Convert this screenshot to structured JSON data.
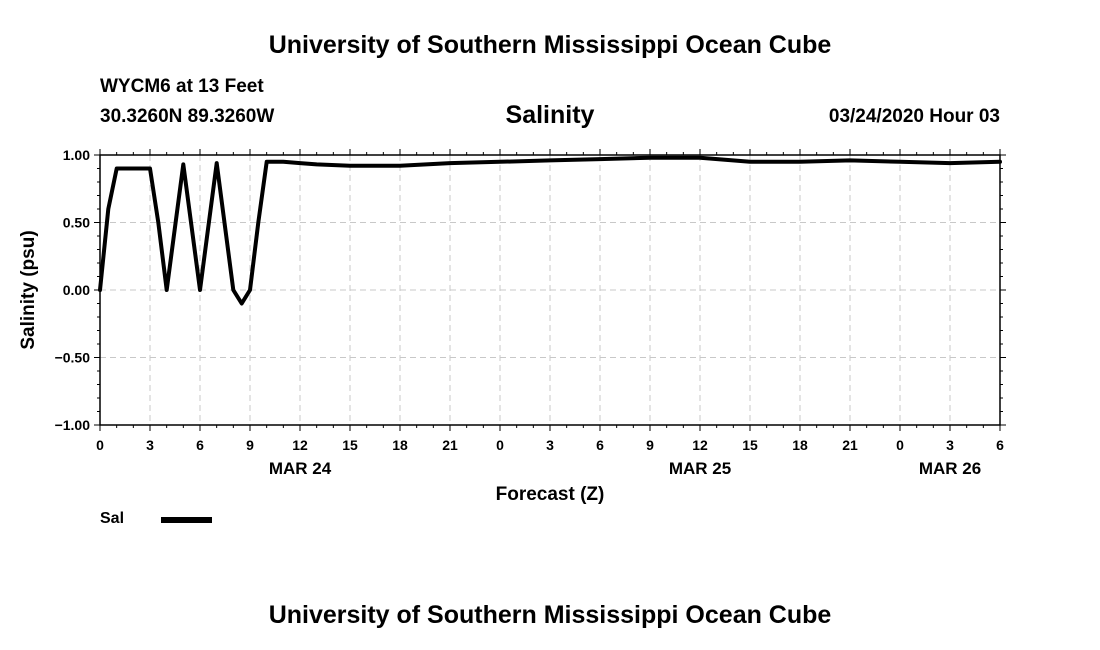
{
  "header": {
    "title": "University of Southern Mississippi Ocean Cube",
    "station": "WYCM6 at 13 Feet",
    "location": "30.3260N 89.3260W",
    "timestamp": "03/24/2020 Hour 03"
  },
  "footer": {
    "title": "University of Southern Mississippi Ocean Cube"
  },
  "chart_data": {
    "type": "line",
    "title": "Salinity",
    "xlabel": "Forecast (Z)",
    "ylabel": "Salinity (psu)",
    "ylim": [
      -1.0,
      1.0
    ],
    "y_ticks": [
      "1.00",
      "0.50",
      "0.00",
      "−0.50",
      "−1.00"
    ],
    "y_tick_values": [
      1.0,
      0.5,
      0.0,
      -0.5,
      -1.0
    ],
    "x_range_hours": [
      0,
      54
    ],
    "x_ticks": [
      "0",
      "3",
      "6",
      "9",
      "12",
      "15",
      "18",
      "21",
      "0",
      "3",
      "6",
      "9",
      "12",
      "15",
      "18",
      "21",
      "0",
      "3",
      "6"
    ],
    "date_labels": [
      {
        "label": "MAR 24",
        "hour": 12
      },
      {
        "label": "MAR 25",
        "hour": 36
      },
      {
        "label": "MAR 26",
        "hour": 51
      }
    ],
    "grid": true,
    "legend_position": "bottom-left",
    "series": [
      {
        "name": "Sal",
        "color": "#000000",
        "x": [
          0,
          0.5,
          1,
          2,
          3,
          3.5,
          4,
          5,
          6,
          7,
          8,
          8.5,
          9,
          9.5,
          10,
          11,
          12,
          13,
          15,
          18,
          21,
          24,
          27,
          30,
          33,
          36,
          39,
          42,
          45,
          48,
          51,
          54
        ],
        "y": [
          0.0,
          0.6,
          0.9,
          0.9,
          0.9,
          0.5,
          0.0,
          0.93,
          0.0,
          0.94,
          0.0,
          -0.1,
          0.0,
          0.5,
          0.95,
          0.95,
          0.94,
          0.93,
          0.92,
          0.92,
          0.94,
          0.95,
          0.96,
          0.97,
          0.98,
          0.98,
          0.95,
          0.95,
          0.96,
          0.95,
          0.94,
          0.95
        ]
      }
    ]
  }
}
